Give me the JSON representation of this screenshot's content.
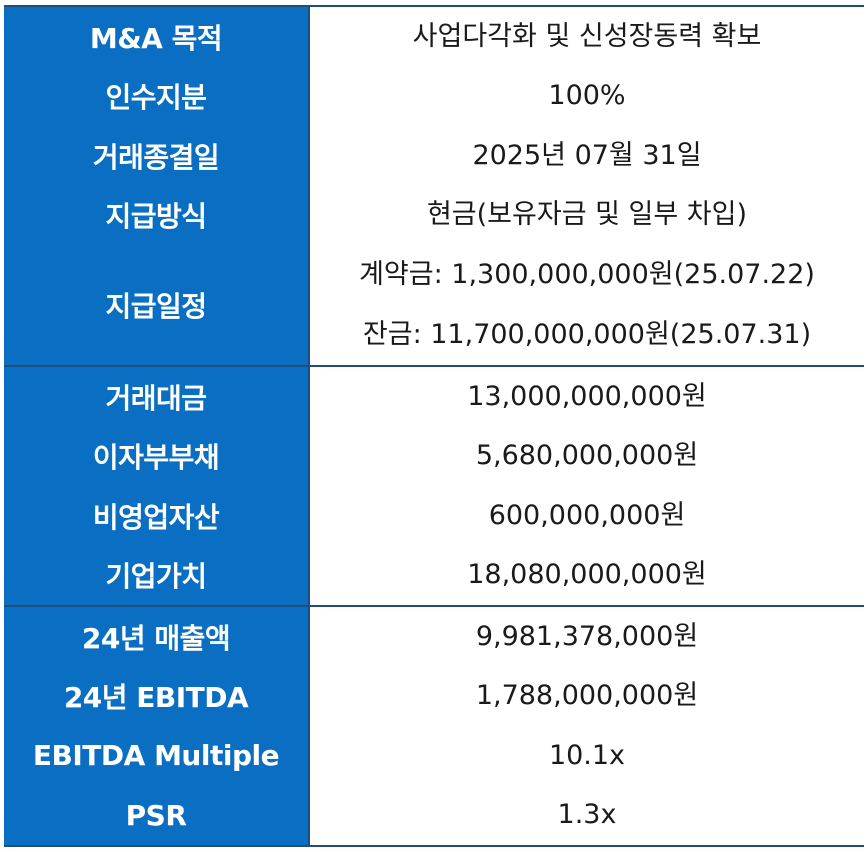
{
  "groups": [
    {
      "rows": [
        {
          "label": "M&A 목적",
          "values": [
            "사업다각화 및 신성장동력 확보"
          ]
        },
        {
          "label": "인수지분",
          "values": [
            "100%"
          ]
        },
        {
          "label": "거래종결일",
          "values": [
            "2025년 07월 31일"
          ]
        },
        {
          "label": "지급방식",
          "values": [
            "현금(보유자금 및 일부 차입)"
          ]
        },
        {
          "label": "지급일정",
          "values": [
            "계약금: 1,300,000,000원(25.07.22)",
            "잔금: 11,700,000,000원(25.07.31)"
          ]
        }
      ]
    },
    {
      "rows": [
        {
          "label": "거래대금",
          "values": [
            "13,000,000,000원"
          ]
        },
        {
          "label": "이자부부채",
          "values": [
            "5,680,000,000원"
          ]
        },
        {
          "label": "비영업자산",
          "values": [
            "600,000,000원"
          ]
        },
        {
          "label": "기업가치",
          "values": [
            "18,080,000,000원"
          ]
        }
      ]
    },
    {
      "rows": [
        {
          "label": "24년 매출액",
          "values": [
            "9,981,378,000원"
          ]
        },
        {
          "label": "24년 EBITDA",
          "values": [
            "1,788,000,000원"
          ]
        },
        {
          "label": "EBITDA Multiple",
          "values": [
            "10.1x"
          ]
        },
        {
          "label": "PSR",
          "values": [
            "1.3x"
          ]
        }
      ]
    }
  ]
}
